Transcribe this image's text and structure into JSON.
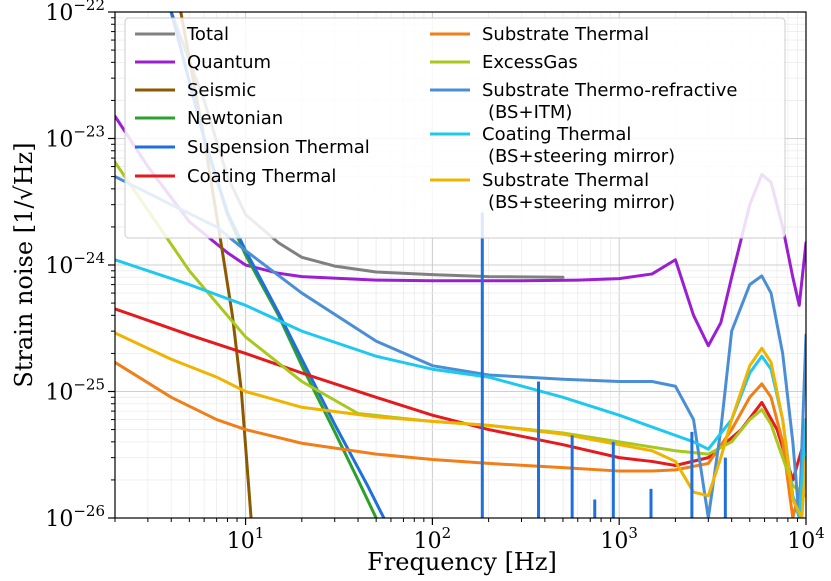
{
  "chart_data": {
    "type": "line",
    "title": "",
    "xlabel": "Frequency [Hz]",
    "ylabel": "Strain noise [1/√Hz]",
    "xscale": "log",
    "yscale": "log",
    "xlim": [
      2,
      10000
    ],
    "ylim": [
      1e-26,
      1e-22
    ],
    "grid": true,
    "legend_position": "top",
    "x_tick_labels": [
      {
        "value": 10,
        "base": "10",
        "exp": "1"
      },
      {
        "value": 100,
        "base": "10",
        "exp": "2"
      },
      {
        "value": 1000,
        "base": "10",
        "exp": "3"
      },
      {
        "value": 10000,
        "base": "10",
        "exp": "4"
      }
    ],
    "y_tick_labels": [
      {
        "value": 1e-26,
        "base": "10",
        "exp": "−26"
      },
      {
        "value": 1e-25,
        "base": "10",
        "exp": "−25"
      },
      {
        "value": 1e-24,
        "base": "10",
        "exp": "−24"
      },
      {
        "value": 1e-23,
        "base": "10",
        "exp": "−23"
      },
      {
        "value": 1e-22,
        "base": "10",
        "exp": "−22"
      }
    ],
    "series": [
      {
        "name": "Total",
        "color": "#808080",
        "width": 3,
        "points": [
          [
            2,
            1e-21
          ],
          [
            4,
            1e-22
          ],
          [
            6,
            2e-23
          ],
          [
            8,
            5e-24
          ],
          [
            10,
            2.5e-24
          ],
          [
            15,
            1.5e-24
          ],
          [
            20,
            1.15e-24
          ],
          [
            30,
            9.8e-25
          ],
          [
            50,
            8.8e-25
          ],
          [
            100,
            8.4e-25
          ],
          [
            200,
            8.1e-25
          ],
          [
            500,
            8e-25
          ]
        ]
      },
      {
        "name": "Quantum",
        "color": "#9b1fd1",
        "width": 3,
        "points": [
          [
            2,
            1.5e-23
          ],
          [
            3,
            6e-24
          ],
          [
            5,
            2.2e-24
          ],
          [
            8,
            1.25e-24
          ],
          [
            10,
            1e-24
          ],
          [
            15,
            8.6e-25
          ],
          [
            20,
            8.1e-25
          ],
          [
            50,
            7.6e-25
          ],
          [
            100,
            7.5e-25
          ],
          [
            300,
            7.5e-25
          ],
          [
            600,
            7.6e-25
          ],
          [
            1000,
            7.8e-25
          ],
          [
            1500,
            8.5e-25
          ],
          [
            2000,
            1.1e-24
          ],
          [
            2500,
            4e-25
          ],
          [
            3000,
            2.3e-25
          ],
          [
            3500,
            3.5e-25
          ],
          [
            4000,
            8e-25
          ],
          [
            5000,
            3e-24
          ],
          [
            5800,
            5.2e-24
          ],
          [
            6500,
            4.5e-24
          ],
          [
            7500,
            2e-24
          ],
          [
            8500,
            8e-25
          ],
          [
            9200,
            4.8e-25
          ],
          [
            10000,
            1.5e-24
          ]
        ]
      },
      {
        "name": "Seismic",
        "color": "#8b5a00",
        "width": 3,
        "points": [
          [
            4.5,
            1e-22
          ],
          [
            6,
            1e-23
          ],
          [
            7.5,
            1.3e-24
          ],
          [
            8.5,
            4e-25
          ],
          [
            9.5,
            1e-25
          ],
          [
            10.7,
            1e-26
          ]
        ]
      },
      {
        "name": "Newtonian",
        "color": "#2ca02c",
        "width": 3,
        "points": [
          [
            4,
            1e-22
          ],
          [
            6,
            1e-23
          ],
          [
            8,
            2.5e-24
          ],
          [
            10,
            1.2e-24
          ],
          [
            15,
            4e-25
          ],
          [
            20,
            1.6e-25
          ],
          [
            30,
            4.8e-26
          ],
          [
            40,
            2e-26
          ],
          [
            50,
            1e-26
          ]
        ]
      },
      {
        "name": "Suspension Thermal",
        "color": "#1f6fdc",
        "width": 3,
        "points": [
          [
            4,
            1e-22
          ],
          [
            6,
            1e-23
          ],
          [
            8,
            2.6e-24
          ],
          [
            10,
            1.3e-24
          ],
          [
            15,
            4.2e-25
          ],
          [
            20,
            1.8e-25
          ],
          [
            30,
            5.5e-26
          ],
          [
            45,
            1.8e-26
          ],
          [
            55,
            1e-26
          ]
        ]
      },
      {
        "name": "Coating Thermal",
        "color": "#e41a1c",
        "width": 3,
        "points": [
          [
            2,
            4.5e-25
          ],
          [
            5,
            2.8e-25
          ],
          [
            10,
            2e-25
          ],
          [
            20,
            1.4e-25
          ],
          [
            50,
            9e-26
          ],
          [
            100,
            6.5e-26
          ],
          [
            200,
            5e-26
          ],
          [
            500,
            3.8e-26
          ],
          [
            1000,
            3e-26
          ],
          [
            1500,
            2.8e-26
          ],
          [
            2000,
            2.6e-26
          ],
          [
            3000,
            3e-26
          ],
          [
            4500,
            5e-26
          ],
          [
            5800,
            8.2e-26
          ],
          [
            7000,
            5e-26
          ],
          [
            8500,
            2e-26
          ],
          [
            9500,
            3.5e-26
          ],
          [
            10000,
            4e-26
          ]
        ]
      },
      {
        "name": "Substrate Thermal",
        "color": "#f07f1a",
        "width": 3,
        "points": [
          [
            2,
            1.7e-25
          ],
          [
            4,
            9e-26
          ],
          [
            7,
            6e-26
          ],
          [
            10,
            5e-26
          ],
          [
            20,
            3.9e-26
          ],
          [
            50,
            3.2e-26
          ],
          [
            100,
            2.9e-26
          ],
          [
            200,
            2.7e-26
          ],
          [
            500,
            2.5e-26
          ],
          [
            1000,
            2.35e-26
          ],
          [
            1500,
            2.35e-26
          ],
          [
            2000,
            2.4e-26
          ],
          [
            3000,
            2.7e-26
          ],
          [
            4000,
            5e-26
          ],
          [
            5000,
            9e-26
          ],
          [
            5800,
            1.15e-25
          ],
          [
            6500,
            9e-26
          ],
          [
            7500,
            4e-26
          ],
          [
            8500,
            1e-26
          ],
          [
            9500,
            2e-26
          ],
          [
            10000,
            3e-26
          ]
        ]
      },
      {
        "name": "ExcessGas",
        "color": "#a8c81e",
        "width": 3,
        "points": [
          [
            2,
            6.5e-24
          ],
          [
            5,
            9e-25
          ],
          [
            10,
            2.7e-25
          ],
          [
            20,
            1.2e-25
          ],
          [
            40,
            6.7e-26
          ],
          [
            100,
            5.8e-26
          ],
          [
            200,
            5.4e-26
          ],
          [
            500,
            4.7e-26
          ],
          [
            1000,
            4e-26
          ],
          [
            2000,
            3.4e-26
          ],
          [
            3000,
            3.2e-26
          ],
          [
            4000,
            4e-26
          ],
          [
            5000,
            6e-26
          ],
          [
            5800,
            7.2e-26
          ],
          [
            6500,
            5.5e-26
          ],
          [
            7500,
            3e-26
          ],
          [
            8500,
            1.8e-26
          ],
          [
            10000,
            1.5e-26
          ]
        ]
      },
      {
        "name": "Substrate Thermo-refractive\n(BS+ITM)",
        "color": "#4a8fd6",
        "width": 3,
        "points": [
          [
            2,
            5e-24
          ],
          [
            4,
            3e-24
          ],
          [
            7,
            2e-24
          ],
          [
            10,
            1.3e-24
          ],
          [
            20,
            6e-25
          ],
          [
            50,
            2.5e-25
          ],
          [
            100,
            1.6e-25
          ],
          [
            200,
            1.35e-25
          ],
          [
            500,
            1.25e-25
          ],
          [
            1000,
            1.2e-25
          ],
          [
            1500,
            1.2e-25
          ],
          [
            2000,
            1.1e-25
          ],
          [
            2500,
            6e-26
          ],
          [
            3000,
            1e-26
          ],
          [
            3500,
            5e-26
          ],
          [
            4000,
            3e-25
          ],
          [
            5000,
            7e-25
          ],
          [
            5800,
            8.2e-25
          ],
          [
            6500,
            6e-25
          ],
          [
            7500,
            2e-25
          ],
          [
            8500,
            4e-26
          ],
          [
            9200,
            1e-26
          ],
          [
            10000,
            2.8e-25
          ]
        ]
      },
      {
        "name": "Coating Thermal\n(BS+steering mirror)",
        "color": "#1ec8f0",
        "width": 3,
        "points": [
          [
            2,
            1.1e-24
          ],
          [
            5,
            7e-25
          ],
          [
            10,
            4.8e-25
          ],
          [
            20,
            3e-25
          ],
          [
            50,
            1.9e-25
          ],
          [
            100,
            1.5e-25
          ],
          [
            200,
            1.3e-25
          ],
          [
            500,
            9e-26
          ],
          [
            1000,
            6.5e-26
          ],
          [
            2000,
            4.5e-26
          ],
          [
            2500,
            4e-26
          ],
          [
            3000,
            3.5e-26
          ],
          [
            4000,
            6e-26
          ],
          [
            5000,
            1.4e-25
          ],
          [
            5800,
            1.9e-25
          ],
          [
            6500,
            1.5e-25
          ],
          [
            7500,
            6e-26
          ],
          [
            8500,
            1.5e-26
          ],
          [
            9200,
            1e-26
          ],
          [
            10000,
            6e-26
          ]
        ]
      },
      {
        "name": "Substrate Thermal\n(BS+steering mirror)",
        "color": "#f0b400",
        "width": 3,
        "points": [
          [
            2,
            2.9e-25
          ],
          [
            4,
            1.8e-25
          ],
          [
            7,
            1.3e-25
          ],
          [
            10,
            1e-25
          ],
          [
            20,
            7.5e-26
          ],
          [
            50,
            6.3e-26
          ],
          [
            100,
            5.8e-26
          ],
          [
            200,
            5.4e-26
          ],
          [
            500,
            4.6e-26
          ],
          [
            1000,
            3.8e-26
          ],
          [
            1500,
            3.4e-26
          ],
          [
            2000,
            2.8e-26
          ],
          [
            2500,
            1.6e-26
          ],
          [
            3000,
            1.5e-26
          ],
          [
            3500,
            3e-26
          ],
          [
            4000,
            6e-26
          ],
          [
            5000,
            1.6e-25
          ],
          [
            5800,
            2.2e-25
          ],
          [
            6500,
            1.7e-25
          ],
          [
            7500,
            6e-26
          ],
          [
            8500,
            1.4e-26
          ],
          [
            9500,
            1e-26
          ],
          [
            10000,
            3e-26
          ]
        ]
      }
    ],
    "spikes": [
      {
        "series": "Suspension Thermal",
        "color": "#1f6fdc",
        "x": 185,
        "base": 1e-26,
        "peak": 2.6e-24
      },
      {
        "series": "Suspension Thermal",
        "color": "#1f6fdc",
        "x": 370,
        "base": 1e-26,
        "peak": 1.2e-25
      },
      {
        "series": "Suspension Thermal",
        "color": "#1f6fdc",
        "x": 560,
        "base": 1e-26,
        "peak": 4.5e-26
      },
      {
        "series": "Suspension Thermal",
        "color": "#1f6fdc",
        "x": 740,
        "base": 1e-26,
        "peak": 1.4e-26
      },
      {
        "series": "Suspension Thermal",
        "color": "#1f6fdc",
        "x": 930,
        "base": 1e-26,
        "peak": 4e-26
      },
      {
        "series": "Suspension Thermal",
        "color": "#1f6fdc",
        "x": 1480,
        "base": 1e-26,
        "peak": 1.7e-26
      },
      {
        "series": "Suspension Thermal",
        "color": "#1f6fdc",
        "x": 2450,
        "base": 1e-26,
        "peak": 4.8e-26
      },
      {
        "series": "Suspension Thermal",
        "color": "#1f6fdc",
        "x": 3700,
        "base": 1e-26,
        "peak": 3e-26
      }
    ],
    "legend": [
      {
        "label": "Total",
        "color": "#808080"
      },
      {
        "label": "Quantum",
        "color": "#9b1fd1"
      },
      {
        "label": "Seismic",
        "color": "#8b5a00"
      },
      {
        "label": "Newtonian",
        "color": "#2ca02c"
      },
      {
        "label": "Suspension Thermal",
        "color": "#1f6fdc"
      },
      {
        "label": "Coating Thermal",
        "color": "#e41a1c"
      },
      {
        "label": "Substrate Thermal",
        "color": "#f07f1a"
      },
      {
        "label": "ExcessGas",
        "color": "#a8c81e"
      },
      {
        "label": "Substrate Thermo-refractive",
        "label2": "(BS+ITM)",
        "color": "#4a8fd6"
      },
      {
        "label": "Coating Thermal",
        "label2": "(BS+steering mirror)",
        "color": "#1ec8f0"
      },
      {
        "label": "Substrate Thermal",
        "label2": "(BS+steering mirror)",
        "color": "#f0b400"
      }
    ]
  }
}
